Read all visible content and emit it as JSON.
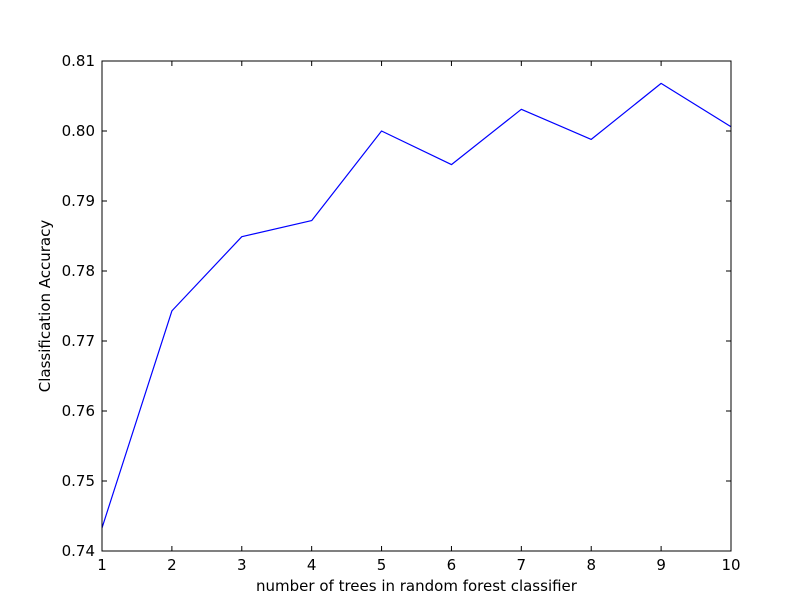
{
  "chart_data": {
    "type": "line",
    "title": "",
    "xlabel": "number of trees in random forest classifier",
    "ylabel": "Classification Accuracy",
    "xlim": [
      1,
      10
    ],
    "ylim": [
      0.74,
      0.81
    ],
    "xticks": [
      1,
      2,
      3,
      4,
      5,
      6,
      7,
      8,
      9,
      10
    ],
    "xtick_labels": [
      "1",
      "2",
      "3",
      "4",
      "5",
      "6",
      "7",
      "8",
      "9",
      "10"
    ],
    "yticks": [
      0.74,
      0.75,
      0.76,
      0.77,
      0.78,
      0.79,
      0.8,
      0.81
    ],
    "ytick_labels": [
      "0.74",
      "0.75",
      "0.76",
      "0.77",
      "0.78",
      "0.79",
      "0.80",
      "0.81"
    ],
    "grid": false,
    "legend": "none",
    "series": [
      {
        "color": "#0000ff",
        "x": [
          1,
          2,
          3,
          4,
          5,
          6,
          7,
          8,
          9,
          10
        ],
        "y": [
          0.7433,
          0.7743,
          0.7849,
          0.7872,
          0.8,
          0.7952,
          0.8031,
          0.7988,
          0.8068,
          0.8006
        ]
      }
    ]
  }
}
